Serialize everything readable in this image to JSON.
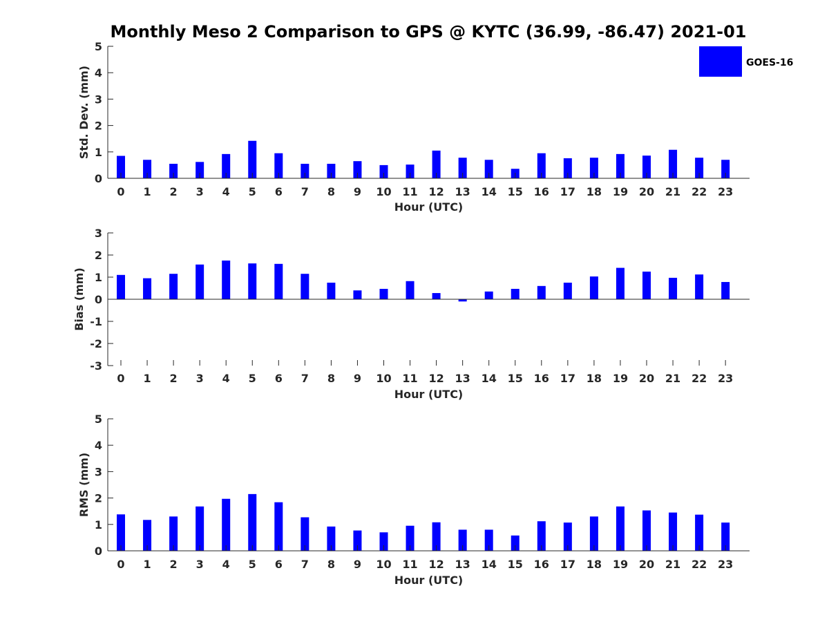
{
  "title": "Monthly Meso 2 Comparison to GPS @ KYTC (36.99, -86.47) 2021-01",
  "legend": {
    "label": "GOES-16",
    "color": "#0000ff",
    "placement": "top-right"
  },
  "bar_color": "#0000ff",
  "chart_data": [
    {
      "type": "bar",
      "name": "std-dev",
      "ylabel": "Std. Dev. (mm)",
      "xlabel": "Hour (UTC)",
      "ylim": [
        0,
        5
      ],
      "yticks": [
        0,
        1,
        2,
        3,
        4,
        5
      ],
      "categories": [
        "0",
        "1",
        "2",
        "3",
        "4",
        "5",
        "6",
        "7",
        "8",
        "9",
        "10",
        "11",
        "12",
        "13",
        "14",
        "15",
        "16",
        "17",
        "18",
        "19",
        "20",
        "21",
        "22",
        "23"
      ],
      "series": [
        {
          "name": "GOES-16",
          "values": [
            0.85,
            0.7,
            0.55,
            0.62,
            0.92,
            1.42,
            0.95,
            0.55,
            0.55,
            0.65,
            0.5,
            0.52,
            1.05,
            0.78,
            0.7,
            0.36,
            0.95,
            0.76,
            0.78,
            0.92,
            0.86,
            1.08,
            0.78,
            0.7
          ]
        }
      ],
      "grid": false
    },
    {
      "type": "bar",
      "name": "bias",
      "ylabel": "Bias (mm)",
      "xlabel": "Hour (UTC)",
      "ylim": [
        -3,
        3
      ],
      "yticks": [
        -3,
        -2,
        -1,
        0,
        1,
        2,
        3
      ],
      "categories": [
        "0",
        "1",
        "2",
        "3",
        "4",
        "5",
        "6",
        "7",
        "8",
        "9",
        "10",
        "11",
        "12",
        "13",
        "14",
        "15",
        "16",
        "17",
        "18",
        "19",
        "20",
        "21",
        "22",
        "23"
      ],
      "series": [
        {
          "name": "GOES-16",
          "values": [
            1.1,
            0.95,
            1.15,
            1.57,
            1.75,
            1.62,
            1.6,
            1.15,
            0.75,
            0.4,
            0.47,
            0.82,
            0.28,
            -0.1,
            0.35,
            0.47,
            0.6,
            0.75,
            1.03,
            1.42,
            1.25,
            0.97,
            1.12,
            0.78
          ]
        }
      ],
      "grid": false
    },
    {
      "type": "bar",
      "name": "rms",
      "ylabel": "RMS (mm)",
      "xlabel": "Hour (UTC)",
      "ylim": [
        0,
        5
      ],
      "yticks": [
        0,
        1,
        2,
        3,
        4,
        5
      ],
      "categories": [
        "0",
        "1",
        "2",
        "3",
        "4",
        "5",
        "6",
        "7",
        "8",
        "9",
        "10",
        "11",
        "12",
        "13",
        "14",
        "15",
        "16",
        "17",
        "18",
        "19",
        "20",
        "21",
        "22",
        "23"
      ],
      "series": [
        {
          "name": "GOES-16",
          "values": [
            1.38,
            1.17,
            1.3,
            1.68,
            1.97,
            2.15,
            1.84,
            1.27,
            0.92,
            0.77,
            0.7,
            0.95,
            1.08,
            0.8,
            0.8,
            0.58,
            1.12,
            1.07,
            1.3,
            1.68,
            1.53,
            1.45,
            1.37,
            1.07
          ]
        }
      ],
      "grid": false
    }
  ]
}
